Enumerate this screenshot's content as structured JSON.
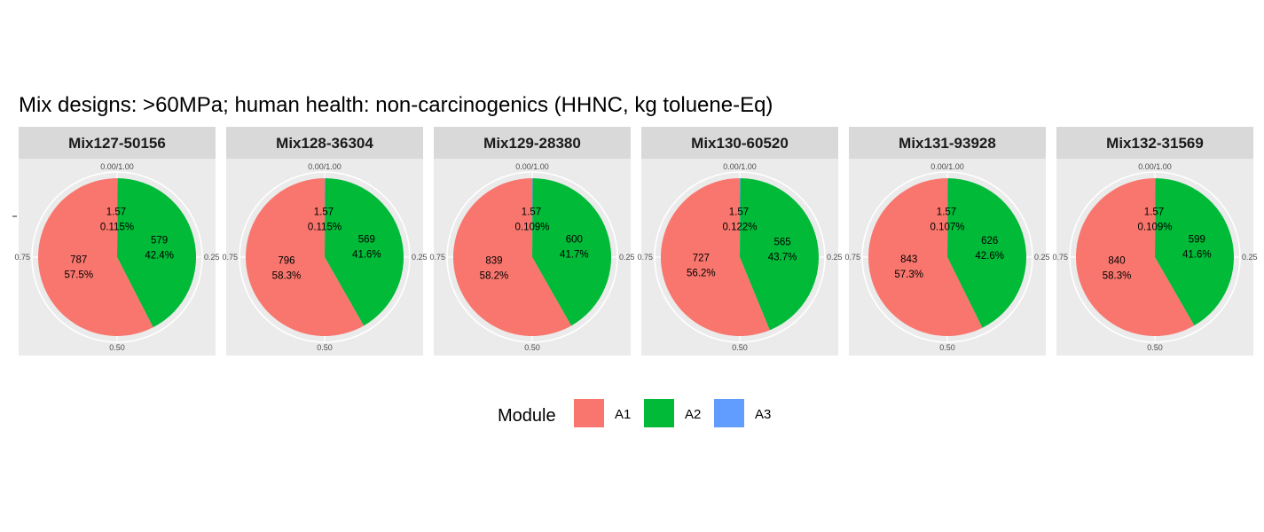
{
  "chart_data": {
    "type": "pie",
    "title": "Mix designs: >60MPa; human health: non-carcinogenics (HHNC, kg toluene-Eq)",
    "axis_ticks": [
      "0.00/1.00",
      "0.25",
      "0.50",
      "0.75"
    ],
    "legend": {
      "title": "Module",
      "position": "bottom",
      "entries": [
        {
          "name": "A1",
          "color": "#F8766D"
        },
        {
          "name": "A2",
          "color": "#00BA38"
        },
        {
          "name": "A3",
          "color": "#619CFF"
        }
      ]
    },
    "panels": [
      {
        "name": "Mix127-50156",
        "slices": [
          {
            "module": "A1",
            "value": "787",
            "percent": "57.5%"
          },
          {
            "module": "A2",
            "value": "579",
            "percent": "42.4%"
          },
          {
            "module": "A3",
            "value": "1.57",
            "percent": "0.115%"
          }
        ]
      },
      {
        "name": "Mix128-36304",
        "slices": [
          {
            "module": "A1",
            "value": "796",
            "percent": "58.3%"
          },
          {
            "module": "A2",
            "value": "569",
            "percent": "41.6%"
          },
          {
            "module": "A3",
            "value": "1.57",
            "percent": "0.115%"
          }
        ]
      },
      {
        "name": "Mix129-28380",
        "slices": [
          {
            "module": "A1",
            "value": "839",
            "percent": "58.2%"
          },
          {
            "module": "A2",
            "value": "600",
            "percent": "41.7%"
          },
          {
            "module": "A3",
            "value": "1.57",
            "percent": "0.109%"
          }
        ]
      },
      {
        "name": "Mix130-60520",
        "slices": [
          {
            "module": "A1",
            "value": "727",
            "percent": "56.2%"
          },
          {
            "module": "A2",
            "value": "565",
            "percent": "43.7%"
          },
          {
            "module": "A3",
            "value": "1.57",
            "percent": "0.122%"
          }
        ]
      },
      {
        "name": "Mix131-93928",
        "slices": [
          {
            "module": "A1",
            "value": "843",
            "percent": "57.3%"
          },
          {
            "module": "A2",
            "value": "626",
            "percent": "42.6%"
          },
          {
            "module": "A3",
            "value": "1.57",
            "percent": "0.107%"
          }
        ]
      },
      {
        "name": "Mix132-31569",
        "slices": [
          {
            "module": "A1",
            "value": "840",
            "percent": "58.3%"
          },
          {
            "module": "A2",
            "value": "599",
            "percent": "41.6%"
          },
          {
            "module": "A3",
            "value": "1.57",
            "percent": "0.109%"
          }
        ]
      }
    ]
  }
}
